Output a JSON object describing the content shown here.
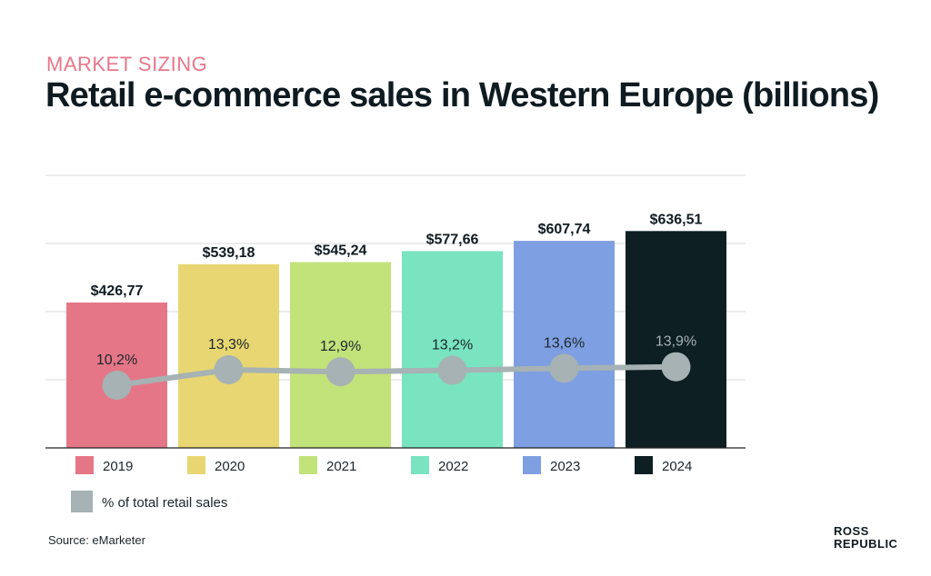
{
  "header": {
    "eyebrow": "MARKET SIZING",
    "title": "Retail e-commerce sales in Western Europe (billions)"
  },
  "source": "Source: eMarketer",
  "logo": {
    "line1": "ROSS",
    "line2": "REPUBLIC"
  },
  "chart_data": {
    "type": "bar",
    "title": "Retail e-commerce sales in Western Europe (billions)",
    "categories": [
      "2019",
      "2020",
      "2021",
      "2022",
      "2023",
      "2024"
    ],
    "values": [
      426.77,
      539.18,
      545.24,
      577.66,
      607.74,
      636.51
    ],
    "value_labels": [
      "$426,77",
      "$539,18",
      "$545,24",
      "$577,66",
      "$607,74",
      "$636,51"
    ],
    "colors": [
      "#e57687",
      "#e8d672",
      "#c2e27a",
      "#79e4bf",
      "#7e9fe1",
      "#0e1f23"
    ],
    "ylim": [
      0,
      800
    ],
    "grid": true,
    "line_series": {
      "name": "% of total retail sales",
      "values": [
        10.2,
        13.3,
        12.9,
        13.2,
        13.6,
        13.9
      ],
      "labels": [
        "10,2%",
        "13,3%",
        "12,9%",
        "13,2%",
        "13,6%",
        "13,9%"
      ],
      "color": "#a6b2b3"
    },
    "legend_position": "bottom"
  }
}
